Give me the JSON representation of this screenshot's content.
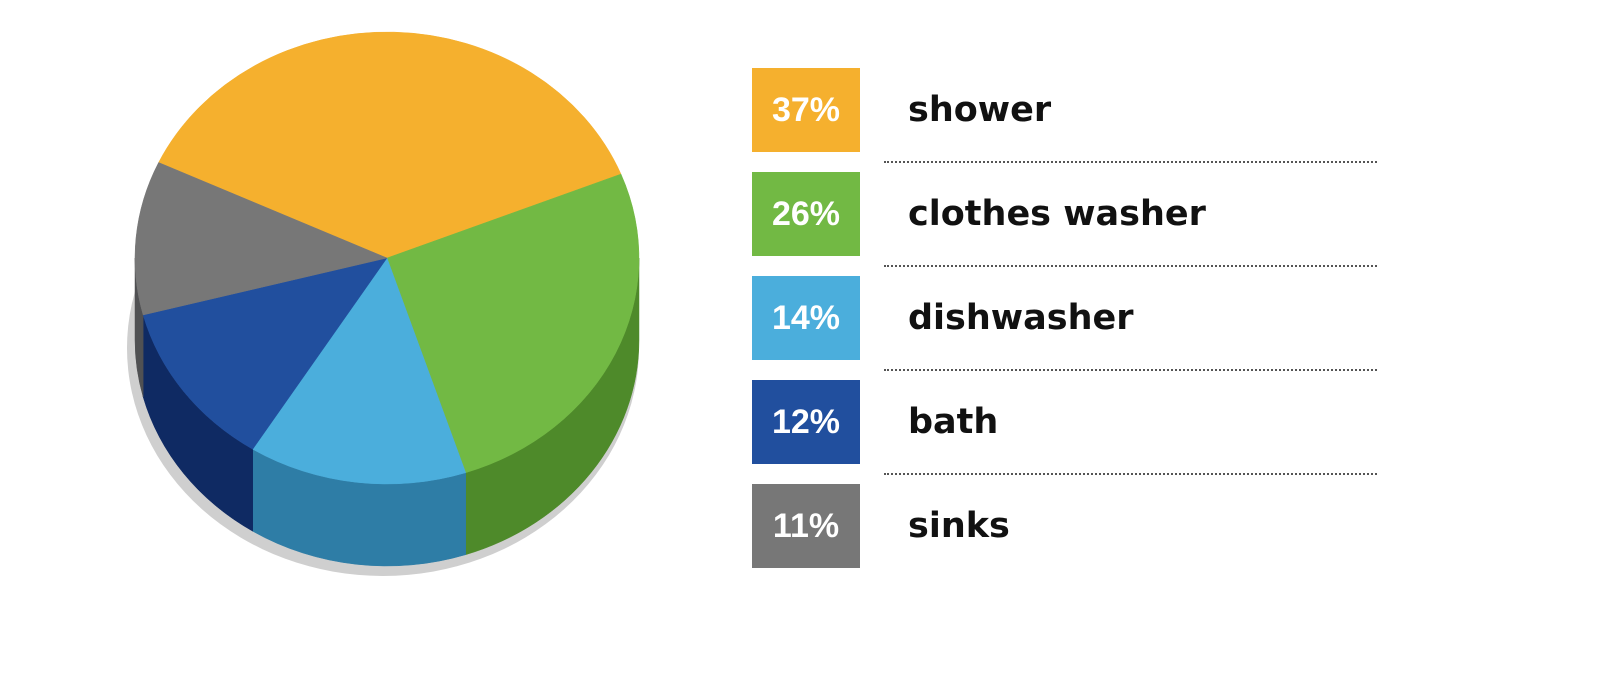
{
  "chart_data": {
    "type": "pie",
    "slices": [
      {
        "label": "shower",
        "value": 37,
        "value_label": "37%",
        "color": "#F5B02E",
        "side_color": "#977010"
      },
      {
        "label": "clothes washer",
        "value": 26,
        "value_label": "26%",
        "color": "#72B944",
        "side_color": "#4E8A2A"
      },
      {
        "label": "dishwasher",
        "value": 14,
        "value_label": "14%",
        "color": "#4BAEDC",
        "side_color": "#2E7DA6"
      },
      {
        "label": "bath",
        "value": 12,
        "value_label": "12%",
        "color": "#214F9E",
        "side_color": "#0F2A63"
      },
      {
        "label": "sinks",
        "value": 11,
        "value_label": "11%",
        "color": "#777777",
        "side_color": "#505153"
      }
    ],
    "title": "",
    "legend_position": "right"
  }
}
